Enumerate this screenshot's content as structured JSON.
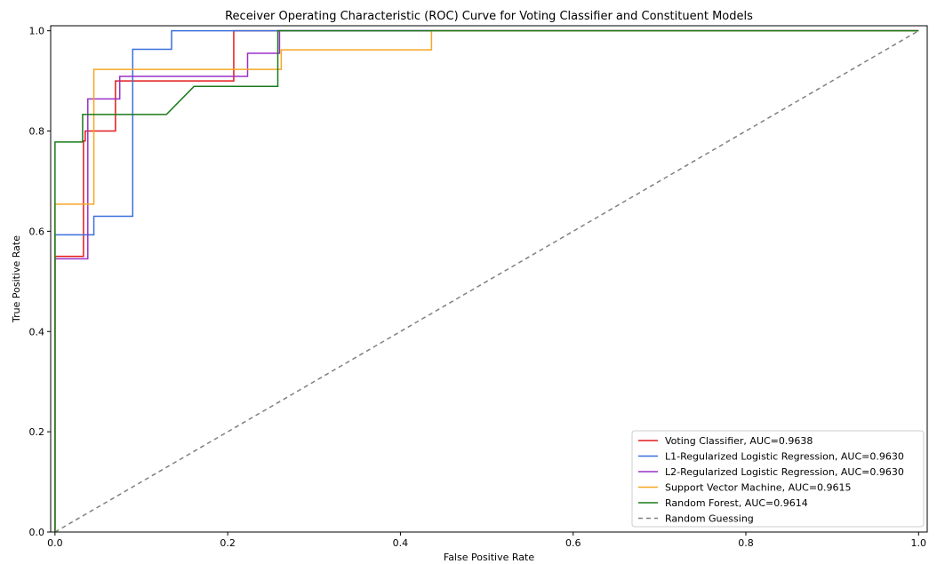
{
  "chart_data": {
    "type": "line",
    "title": "Receiver Operating Characteristic (ROC) Curve for Voting Classifier and Constituent Models",
    "xlabel": "False Positive Rate",
    "ylabel": "True Positive Rate",
    "xlim": [
      -0.005,
      1.01
    ],
    "ylim": [
      0.0,
      1.01
    ],
    "xticks": [
      "0.0",
      "0.2",
      "0.4",
      "0.6",
      "0.8",
      "1.0"
    ],
    "yticks": [
      "0.0",
      "0.2",
      "0.4",
      "0.6",
      "0.8",
      "1.0"
    ],
    "grid": false,
    "legend_position": "bottom-right",
    "series": [
      {
        "name": "Voting Classifier, AUC=0.9638",
        "color": "#e41a1c",
        "x": [
          0,
          0,
          0.033,
          0.033,
          0.035,
          0.035,
          0.07,
          0.07,
          0.207,
          0.207,
          1.0
        ],
        "y": [
          0,
          0.55,
          0.55,
          0.78,
          0.78,
          0.8,
          0.8,
          0.9,
          0.9,
          1.0,
          1.0
        ]
      },
      {
        "name": "L1-Regularized Logistic Regression, AUC=0.9630",
        "color": "#3a6fdc",
        "x": [
          0,
          0,
          0.045,
          0.045,
          0.09,
          0.09,
          0.135,
          0.135,
          1.0
        ],
        "y": [
          0,
          0.593,
          0.593,
          0.63,
          0.63,
          0.963,
          0.963,
          1.0,
          1.0
        ]
      },
      {
        "name": "L2-Regularized Logistic Regression, AUC=0.9630",
        "color": "#9b30c8",
        "x": [
          0,
          0,
          0.038,
          0.038,
          0.075,
          0.075,
          0.223,
          0.223,
          0.26,
          0.26,
          1.0
        ],
        "y": [
          0,
          0.545,
          0.545,
          0.864,
          0.864,
          0.909,
          0.909,
          0.955,
          0.955,
          1.0,
          1.0
        ]
      },
      {
        "name": "Support Vector Machine, AUC=0.9615",
        "color": "#f5a623",
        "x": [
          0,
          0,
          0.045,
          0.045,
          0.262,
          0.262,
          0.436,
          0.436,
          1.0
        ],
        "y": [
          0,
          0.654,
          0.654,
          0.923,
          0.923,
          0.962,
          0.962,
          1.0,
          1.0
        ]
      },
      {
        "name": "Random Forest, AUC=0.9614",
        "color": "#1a7a1a",
        "x": [
          0,
          0,
          0.032,
          0.032,
          0.129,
          0.161,
          0.258,
          0.258,
          1.0
        ],
        "y": [
          0,
          0.778,
          0.778,
          0.833,
          0.833,
          0.889,
          0.889,
          1.0,
          1.0
        ]
      },
      {
        "name": "Random Guessing",
        "color": "#808080",
        "dashed": true,
        "x": [
          0,
          1
        ],
        "y": [
          0,
          1
        ]
      }
    ]
  }
}
